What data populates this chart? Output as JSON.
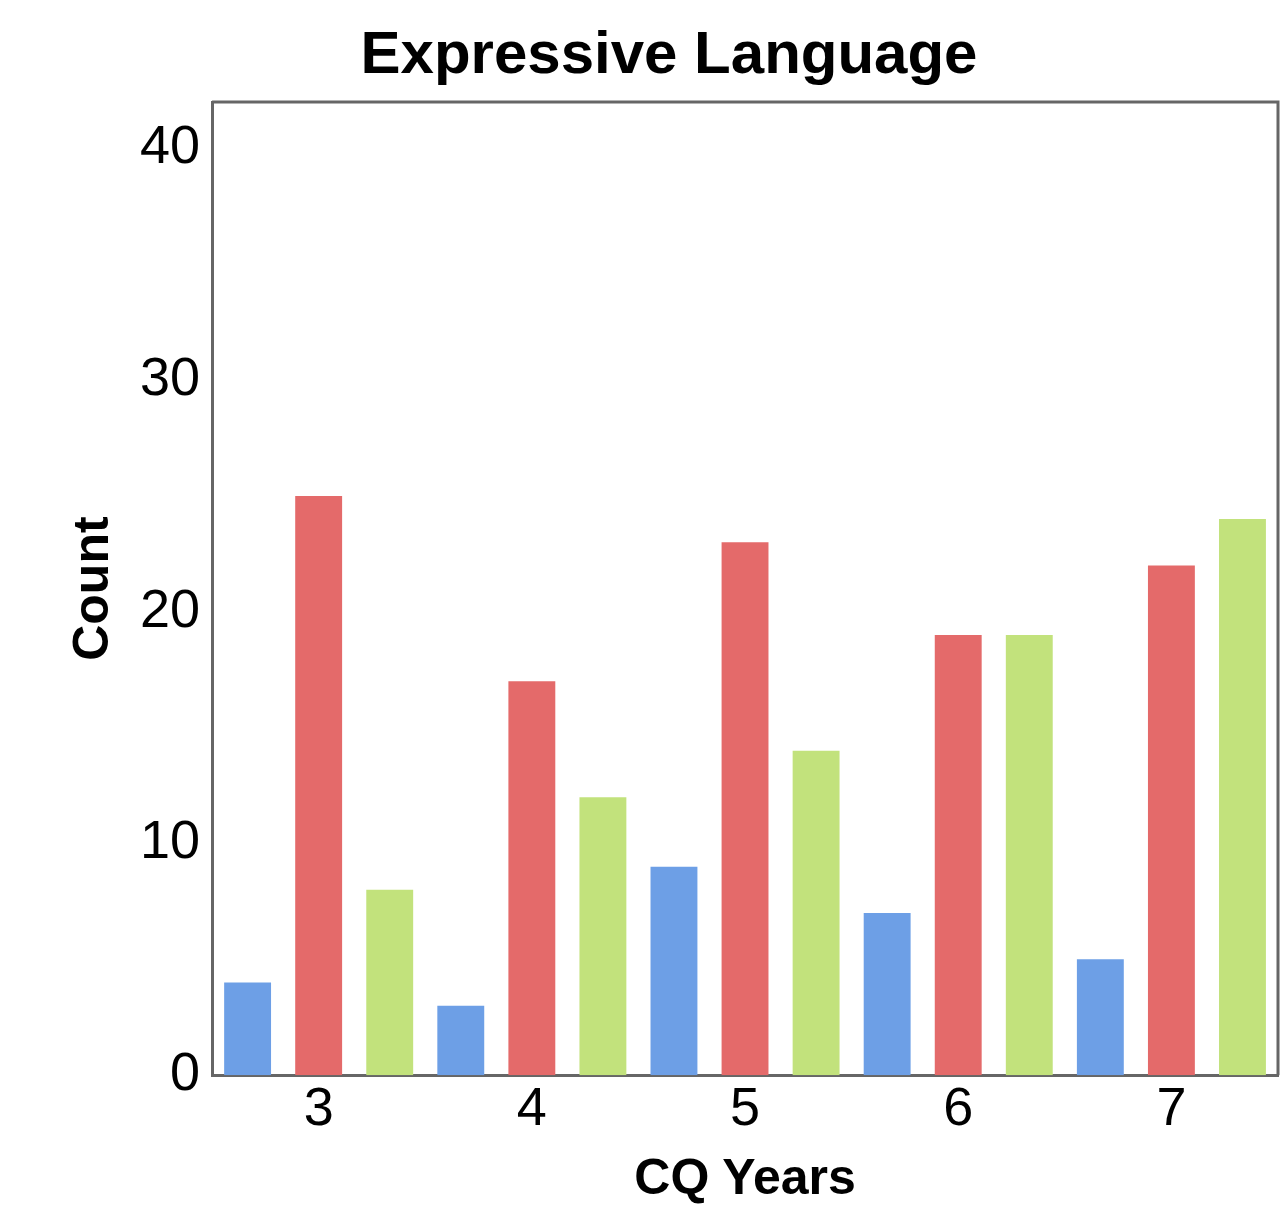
{
  "chart_data": {
    "type": "bar",
    "title": "Expressive Language",
    "xlabel": "CQ Years",
    "ylabel": "Count",
    "categories": [
      "3",
      "4",
      "5",
      "6",
      "7"
    ],
    "series": [
      {
        "color": "#6d9fe6",
        "values": [
          4,
          3,
          9,
          7,
          5
        ]
      },
      {
        "color": "#e46a6a",
        "values": [
          25,
          17,
          23,
          19,
          22
        ]
      },
      {
        "color": "#c2e27c",
        "values": [
          8,
          12,
          14,
          19,
          24
        ]
      }
    ],
    "ylim": [
      0,
      42
    ],
    "yticks": [
      0,
      10,
      20,
      30,
      40
    ],
    "grid": false,
    "legend": false
  }
}
